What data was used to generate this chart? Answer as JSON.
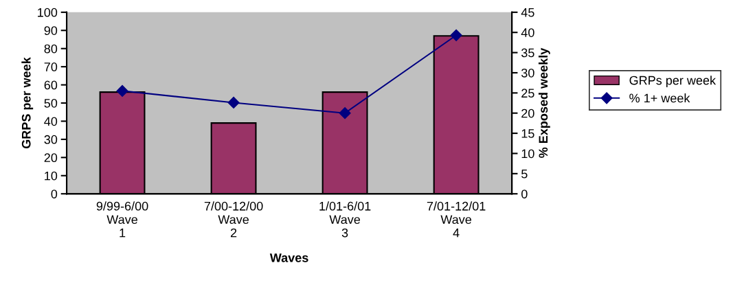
{
  "chart_data": {
    "type": "bar",
    "xlabel": "Waves",
    "ylabel": "GRPS per week",
    "y2label": "% Exposed weekly",
    "categories": [
      "9/99-6/00\nWave\n1",
      "7/00-12/00\nWave\n2",
      "1/01-6/01\nWave\n3",
      "7/01-12/01\nWave\n4"
    ],
    "series": [
      {
        "name": "GRPs per week",
        "color": "#993366",
        "values": [
          56,
          39,
          56,
          87
        ]
      },
      {
        "name": "% 1+ week",
        "type": "line",
        "axis": "y2",
        "color": "#000080",
        "marker": "diamond",
        "values": [
          25.5,
          22.6,
          20,
          39.3
        ]
      }
    ],
    "ylim": [
      0,
      100
    ],
    "yticks": [
      0,
      10,
      20,
      30,
      40,
      50,
      60,
      70,
      80,
      90,
      100
    ],
    "y2lim": [
      0,
      45
    ],
    "y2ticks": [
      0,
      5,
      10,
      15,
      20,
      25,
      30,
      35,
      40,
      45
    ],
    "grid": false,
    "legend": "right"
  }
}
